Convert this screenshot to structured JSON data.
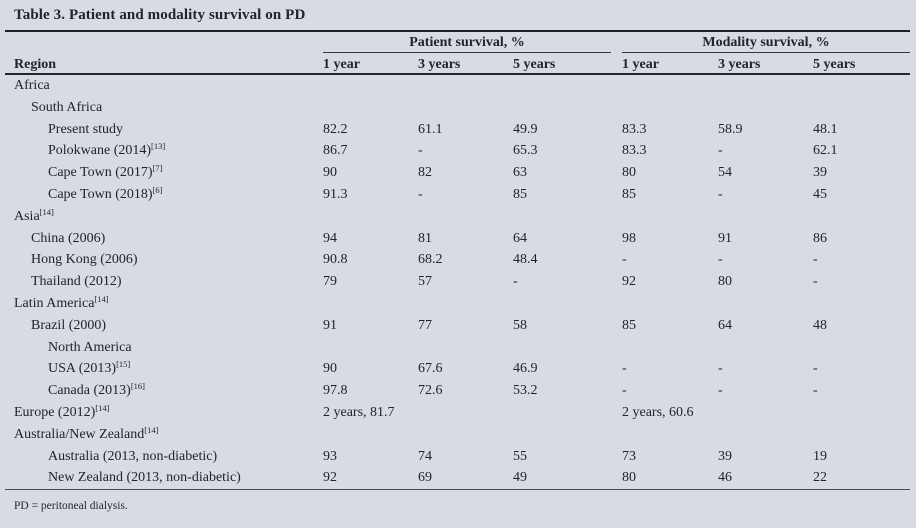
{
  "table": {
    "title": "Table 3. Patient and modality survival on PD",
    "region_header": "Region",
    "col_groups": {
      "patient": "Patient survival, %",
      "modality": "Modality survival, %"
    },
    "year_headers": [
      "1 year",
      "3 years",
      "5 years",
      "1 year",
      "3 years",
      "5 years"
    ],
    "rows": [
      {
        "label": "Africa",
        "sup": "",
        "indent": 0,
        "values": [
          "",
          "",
          "",
          "",
          "",
          ""
        ]
      },
      {
        "label": "South Africa",
        "sup": "",
        "indent": 1,
        "values": [
          "",
          "",
          "",
          "",
          "",
          ""
        ]
      },
      {
        "label": "Present study",
        "sup": "",
        "indent": 2,
        "values": [
          "82.2",
          "61.1",
          "49.9",
          "83.3",
          "58.9",
          "48.1"
        ]
      },
      {
        "label": "Polokwane (2014)",
        "sup": "[13]",
        "indent": 2,
        "values": [
          "86.7",
          "-",
          "65.3",
          "83.3",
          "-",
          "62.1"
        ]
      },
      {
        "label": "Cape Town (2017)",
        "sup": "[7]",
        "indent": 2,
        "values": [
          "90",
          "82",
          "63",
          "80",
          "54",
          "39"
        ]
      },
      {
        "label": "Cape Town (2018)",
        "sup": "[6]",
        "indent": 2,
        "values": [
          "91.3",
          "-",
          "85",
          "85",
          "-",
          "45"
        ]
      },
      {
        "label": "Asia",
        "sup": "[14]",
        "indent": 0,
        "values": [
          "",
          "",
          "",
          "",
          "",
          ""
        ]
      },
      {
        "label": "China (2006)",
        "sup": "",
        "indent": 1,
        "values": [
          "94",
          "81",
          "64",
          "98",
          "91",
          "86"
        ]
      },
      {
        "label": "Hong Kong (2006)",
        "sup": "",
        "indent": 1,
        "values": [
          "90.8",
          "68.2",
          "48.4",
          "-",
          "-",
          "-"
        ]
      },
      {
        "label": "Thailand (2012)",
        "sup": "",
        "indent": 1,
        "values": [
          "79",
          "57",
          "-",
          "92",
          "80",
          "-"
        ]
      },
      {
        "label": "Latin America",
        "sup": "[14]",
        "indent": 0,
        "values": [
          "",
          "",
          "",
          "",
          "",
          ""
        ]
      },
      {
        "label": "Brazil (2000)",
        "sup": "",
        "indent": 1,
        "values": [
          "91",
          "77",
          "58",
          "85",
          "64",
          "48"
        ]
      },
      {
        "label": "North America",
        "sup": "",
        "indent": 2,
        "values": [
          "",
          "",
          "",
          "",
          "",
          ""
        ]
      },
      {
        "label": "USA (2013)",
        "sup": "[15]",
        "indent": 2,
        "values": [
          "90",
          "67.6",
          "46.9",
          "-",
          "-",
          "-"
        ]
      },
      {
        "label": "Canada (2013)",
        "sup": "[16]",
        "indent": 2,
        "values": [
          "97.8",
          "72.6",
          "53.2",
          "-",
          "-",
          "-"
        ]
      },
      {
        "label": "Europe (2012)",
        "sup": "[14]",
        "indent": 0,
        "values": [
          "2 years, 81.7",
          "",
          "",
          "2 years, 60.6",
          "",
          ""
        ]
      },
      {
        "label": "Australia/New Zealand",
        "sup": "[14]",
        "indent": 0,
        "values": [
          "",
          "",
          "",
          "",
          "",
          ""
        ]
      },
      {
        "label": "Australia (2013, non-diabetic)",
        "sup": "",
        "indent": 2,
        "values": [
          "93",
          "74",
          "55",
          "73",
          "39",
          "19"
        ]
      },
      {
        "label": "New Zealand (2013, non-diabetic)",
        "sup": "",
        "indent": 2,
        "values": [
          "92",
          "69",
          "49",
          "80",
          "46",
          "22"
        ]
      }
    ],
    "footnote": "PD = peritoneal dialysis.",
    "colors": {
      "background": "#d8dce2",
      "text": "#20242b",
      "rule": "#24262b"
    }
  }
}
